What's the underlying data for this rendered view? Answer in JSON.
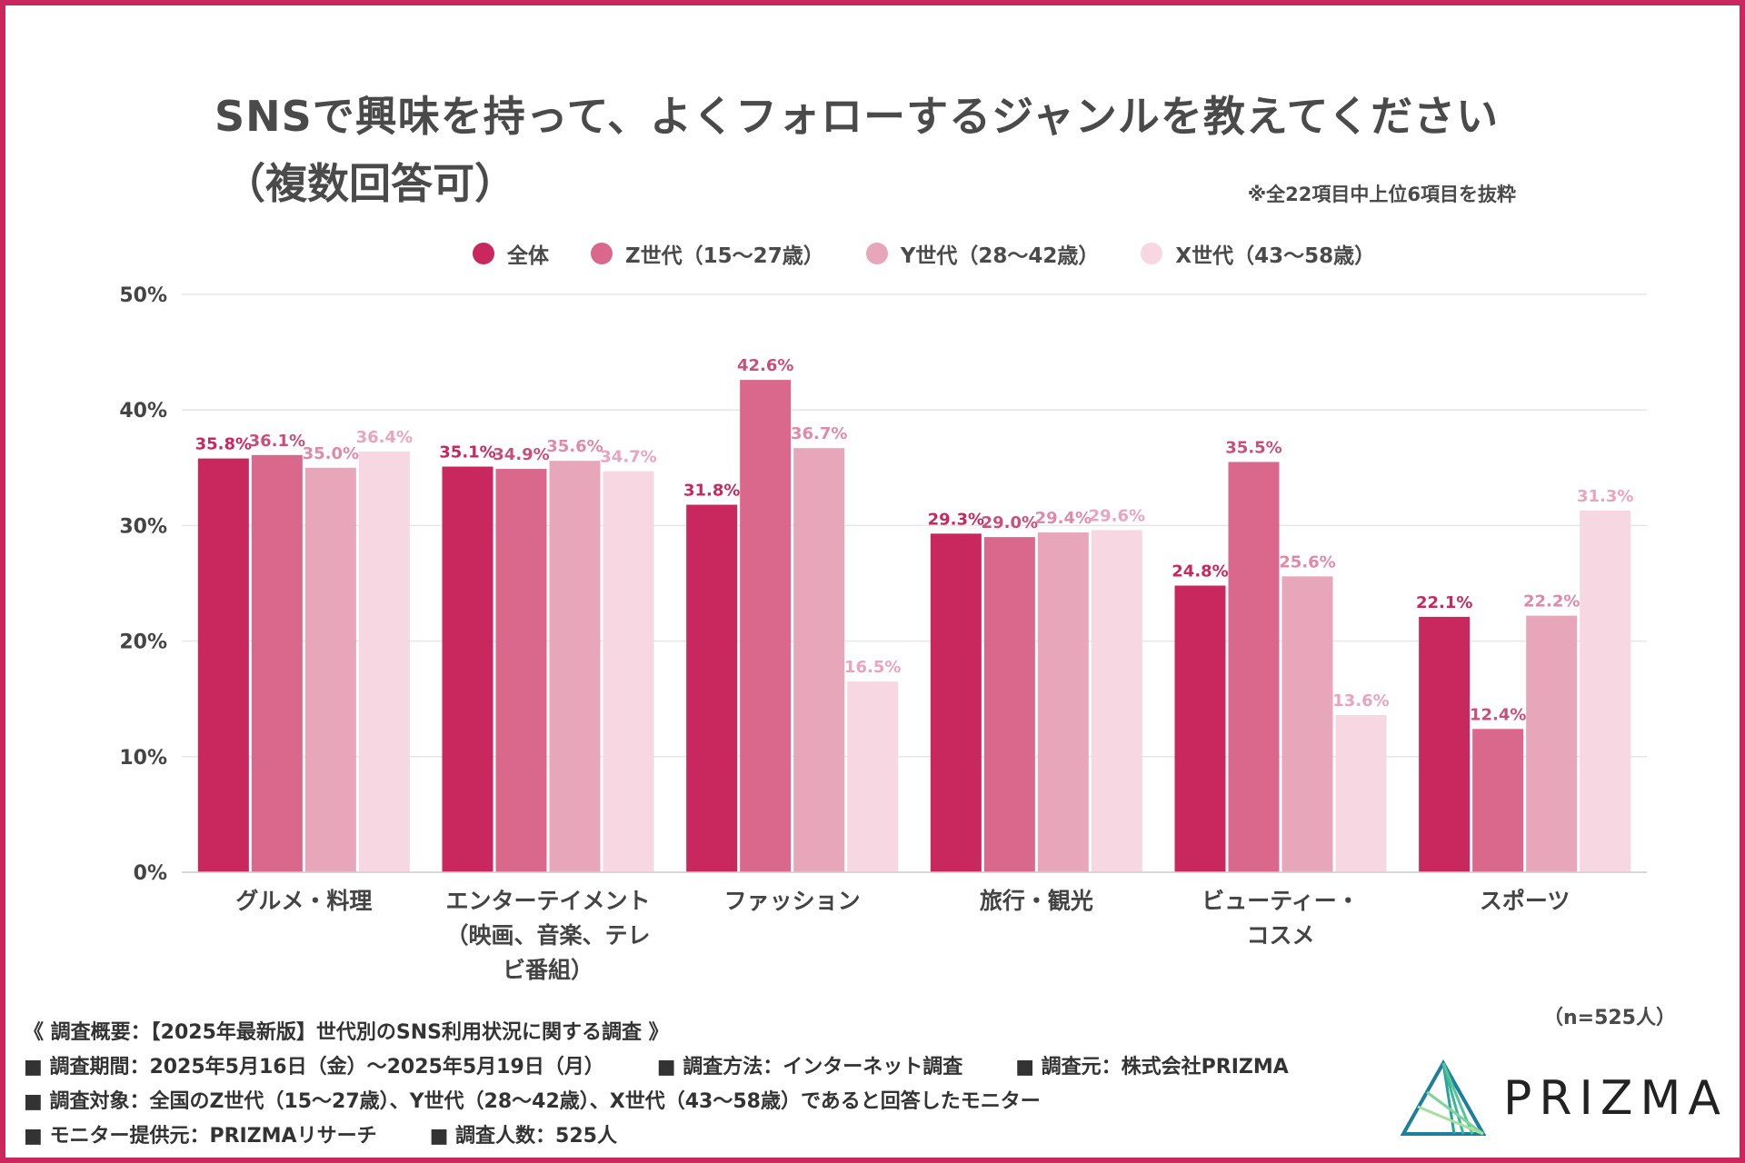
{
  "title_line1": "SNSで興味を持って、よくフォローするジャンルを教えてください",
  "title_line2": "（複数回答可）",
  "note": "※全22項目中上位6項目を抜粋",
  "sample": "（n=525人）",
  "colors": {
    "series": [
      "#c8285e",
      "#d9688c",
      "#e8a6bb",
      "#f7d8e2"
    ],
    "label": [
      "#c8285e",
      "#c84f77",
      "#e08aa5",
      "#e9a5bb"
    ],
    "border": "#c9285f",
    "grid": "#e6e6e6",
    "text": "#4a4a4a"
  },
  "chart_data": {
    "type": "bar",
    "categories": [
      [
        "グルメ・料理"
      ],
      [
        "エンターテイメント",
        "（映画、音楽、テレ",
        "ビ番組）"
      ],
      [
        "ファッション"
      ],
      [
        "旅行・観光"
      ],
      [
        "ビューティー・",
        "コスメ"
      ],
      [
        "スポーツ"
      ]
    ],
    "series": [
      {
        "name": "全体",
        "values": [
          35.8,
          35.1,
          31.8,
          29.3,
          24.8,
          22.1
        ]
      },
      {
        "name": "Z世代（15〜27歳）",
        "values": [
          36.1,
          34.9,
          42.6,
          29.0,
          35.5,
          12.4
        ]
      },
      {
        "name": "Y世代（28〜42歳）",
        "values": [
          35.0,
          35.6,
          36.7,
          29.4,
          25.6,
          22.2
        ]
      },
      {
        "name": "X世代（43〜58歳）",
        "values": [
          36.4,
          34.7,
          16.5,
          29.6,
          13.6,
          31.3
        ]
      }
    ],
    "ylim": [
      0,
      50
    ],
    "yticks": [
      0,
      10,
      20,
      30,
      40,
      50
    ],
    "ytick_suffix": "%",
    "value_suffix": "%",
    "grid": true,
    "legend_position": "top-center"
  },
  "footer": {
    "survey_title": "《 調査概要：【2025年最新版】世代別のSNS利用状況に関する調査 》",
    "period": "■ 調査期間：2025年5月16日（金）〜2025年5月19日（月）",
    "method": "■ 調査方法：インターネット調査",
    "source": "■ 調査元：株式会社PRIZMA",
    "target": "■ 調査対象：全国のZ世代（15〜27歳）、Y世代（28〜42歳）、X世代（43〜58歳）であると回答したモニター",
    "provider": "■ モニター提供元：PRIZMAリサーチ",
    "count": "■ 調査人数：525人"
  },
  "logo": {
    "text": "PRIZMA",
    "icon": "prism-logo-icon"
  }
}
